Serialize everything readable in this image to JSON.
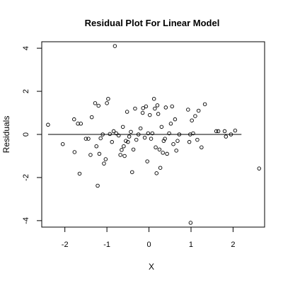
{
  "chart_data": {
    "type": "scatter",
    "title": "Residual Plot For Linear Model",
    "xlabel": "X",
    "ylabel": "Residuals",
    "xlim": [
      -2.55,
      2.75
    ],
    "ylim": [
      -4.3,
      4.3
    ],
    "xticks": [
      -2,
      -1,
      0,
      1,
      2
    ],
    "yticks": [
      -4,
      -2,
      0,
      2,
      4
    ],
    "reference_line_y": 0,
    "grid": false,
    "legend": "none",
    "point_color": "#000000",
    "points": [
      {
        "x": -2.4,
        "y": 0.45
      },
      {
        "x": -2.05,
        "y": -0.45
      },
      {
        "x": -1.78,
        "y": 0.7
      },
      {
        "x": -1.77,
        "y": -0.82
      },
      {
        "x": -1.69,
        "y": 0.5
      },
      {
        "x": -1.65,
        "y": -1.82
      },
      {
        "x": -1.62,
        "y": 0.5
      },
      {
        "x": -1.5,
        "y": -0.2
      },
      {
        "x": -1.44,
        "y": -0.2
      },
      {
        "x": -1.39,
        "y": -0.95
      },
      {
        "x": -1.36,
        "y": 0.8
      },
      {
        "x": -1.28,
        "y": 1.45
      },
      {
        "x": -1.25,
        "y": -0.55
      },
      {
        "x": -1.22,
        "y": -2.38
      },
      {
        "x": -1.2,
        "y": 1.33
      },
      {
        "x": -1.18,
        "y": -0.9
      },
      {
        "x": -1.15,
        "y": -0.18
      },
      {
        "x": -1.1,
        "y": 0.0
      },
      {
        "x": -1.07,
        "y": -1.35
      },
      {
        "x": -1.03,
        "y": -1.15
      },
      {
        "x": -1.0,
        "y": 1.45
      },
      {
        "x": -0.97,
        "y": 1.65
      },
      {
        "x": -0.93,
        "y": 0.02
      },
      {
        "x": -0.88,
        "y": -0.35
      },
      {
        "x": -0.84,
        "y": 0.15
      },
      {
        "x": -0.81,
        "y": 4.1
      },
      {
        "x": -0.78,
        "y": 0.05
      },
      {
        "x": -0.72,
        "y": -0.05
      },
      {
        "x": -0.68,
        "y": -0.95
      },
      {
        "x": -0.65,
        "y": -0.72
      },
      {
        "x": -0.62,
        "y": 0.35
      },
      {
        "x": -0.6,
        "y": -0.55
      },
      {
        "x": -0.58,
        "y": -1.0
      },
      {
        "x": -0.55,
        "y": -0.3
      },
      {
        "x": -0.52,
        "y": 1.05
      },
      {
        "x": -0.5,
        "y": -0.35
      },
      {
        "x": -0.47,
        "y": -0.1
      },
      {
        "x": -0.43,
        "y": 0.12
      },
      {
        "x": -0.4,
        "y": -1.75
      },
      {
        "x": -0.37,
        "y": -0.7
      },
      {
        "x": -0.33,
        "y": 1.2
      },
      {
        "x": -0.3,
        "y": -0.25
      },
      {
        "x": -0.25,
        "y": 0.0
      },
      {
        "x": -0.2,
        "y": 0.28
      },
      {
        "x": -0.15,
        "y": 1.0
      },
      {
        "x": -0.14,
        "y": 1.22
      },
      {
        "x": -0.1,
        "y": -0.15
      },
      {
        "x": -0.07,
        "y": 1.3
      },
      {
        "x": -0.04,
        "y": -1.25
      },
      {
        "x": -0.02,
        "y": 0.05
      },
      {
        "x": 0.02,
        "y": 0.9
      },
      {
        "x": 0.05,
        "y": -0.2
      },
      {
        "x": 0.08,
        "y": 0.05
      },
      {
        "x": 0.12,
        "y": 1.65
      },
      {
        "x": 0.14,
        "y": 1.2
      },
      {
        "x": 0.16,
        "y": -0.6
      },
      {
        "x": 0.18,
        "y": -1.8
      },
      {
        "x": 0.2,
        "y": 1.35
      },
      {
        "x": 0.22,
        "y": 0.95
      },
      {
        "x": 0.25,
        "y": -0.7
      },
      {
        "x": 0.27,
        "y": -1.55
      },
      {
        "x": 0.3,
        "y": 0.35
      },
      {
        "x": 0.33,
        "y": -0.85
      },
      {
        "x": 0.35,
        "y": -0.3
      },
      {
        "x": 0.38,
        "y": -0.2
      },
      {
        "x": 0.4,
        "y": 1.25
      },
      {
        "x": 0.43,
        "y": -0.9
      },
      {
        "x": 0.48,
        "y": 0.05
      },
      {
        "x": 0.52,
        "y": 0.5
      },
      {
        "x": 0.55,
        "y": 1.3
      },
      {
        "x": 0.58,
        "y": -0.45
      },
      {
        "x": 0.62,
        "y": 0.7
      },
      {
        "x": 0.65,
        "y": -0.75
      },
      {
        "x": 0.68,
        "y": -0.3
      },
      {
        "x": 0.72,
        "y": 0.0
      },
      {
        "x": 0.93,
        "y": 1.15
      },
      {
        "x": 0.96,
        "y": -0.35
      },
      {
        "x": 0.98,
        "y": 0.0
      },
      {
        "x": 0.99,
        "y": -4.1
      },
      {
        "x": 1.02,
        "y": 0.65
      },
      {
        "x": 1.05,
        "y": 0.05
      },
      {
        "x": 1.1,
        "y": 0.85
      },
      {
        "x": 1.15,
        "y": -0.25
      },
      {
        "x": 1.18,
        "y": 1.1
      },
      {
        "x": 1.25,
        "y": -0.6
      },
      {
        "x": 1.33,
        "y": 1.4
      },
      {
        "x": 1.6,
        "y": 0.15
      },
      {
        "x": 1.65,
        "y": 0.15
      },
      {
        "x": 1.8,
        "y": 0.15
      },
      {
        "x": 1.83,
        "y": -0.1
      },
      {
        "x": 1.95,
        "y": 0.0
      },
      {
        "x": 2.05,
        "y": 0.18
      },
      {
        "x": 2.62,
        "y": -1.58
      }
    ]
  }
}
